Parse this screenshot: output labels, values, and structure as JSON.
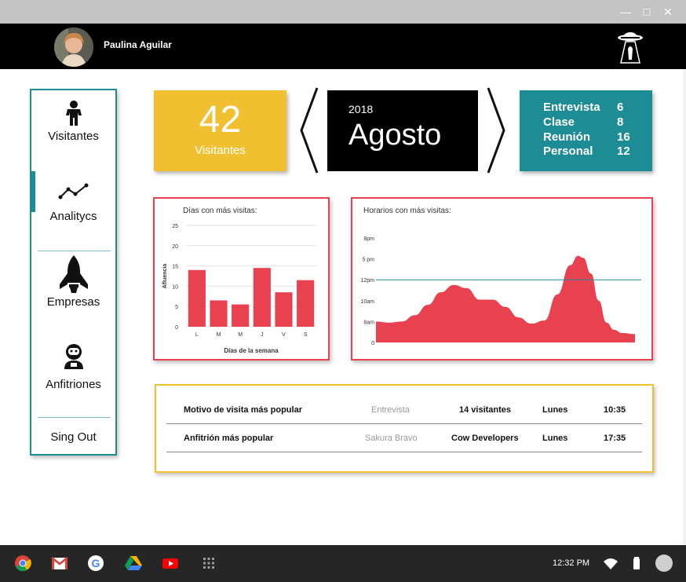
{
  "header": {
    "user_name": "Paulina Aguilar"
  },
  "sidebar": {
    "items": [
      {
        "label": "Visitantes",
        "icon": "person-icon"
      },
      {
        "label": "Analitycs",
        "icon": "line-chart-icon"
      },
      {
        "label": "Empresas",
        "icon": "rocket-icon"
      },
      {
        "label": "Anfitriones",
        "icon": "astronaut-icon"
      }
    ],
    "signout": "Sing Out"
  },
  "stats": {
    "visitors_count": "42",
    "visitors_label": "Visitantes",
    "year": "2018",
    "month": "Agosto",
    "breakdown": [
      {
        "label": "Entrevista",
        "value": "6"
      },
      {
        "label": "Clase",
        "value": "8"
      },
      {
        "label": "Reunión",
        "value": "16"
      },
      {
        "label": "Personal",
        "value": "12"
      }
    ]
  },
  "chart_data": [
    {
      "type": "bar",
      "title": "Días con más visitas:",
      "xlabel": "Días de la semana",
      "ylabel": "Afluencia",
      "categories": [
        "L",
        "M",
        "M",
        "J",
        "V",
        "S"
      ],
      "values": [
        14,
        6.5,
        5.5,
        14.5,
        8.5,
        11.5
      ],
      "yticks": [
        "0",
        "5",
        "10",
        "15",
        "20",
        "25"
      ],
      "ylim": [
        0,
        25
      ],
      "color": "#e8414f",
      "grid": true
    },
    {
      "type": "area",
      "title": "Horarios con más visitas:",
      "yticks": [
        "0",
        "8am",
        "10am",
        "12pm",
        "5 pm",
        "8pm"
      ],
      "ylim": [
        0,
        5
      ],
      "x": [
        0,
        0.05,
        0.1,
        0.15,
        0.2,
        0.25,
        0.3,
        0.35,
        0.4,
        0.45,
        0.5,
        0.55,
        0.6,
        0.65,
        0.7,
        0.75,
        0.78,
        0.8,
        0.83,
        0.86,
        0.89,
        0.92,
        0.95,
        1.0
      ],
      "values": [
        1.0,
        0.95,
        1.0,
        1.3,
        1.8,
        2.4,
        2.75,
        2.6,
        2.05,
        2.05,
        1.7,
        1.2,
        0.9,
        1.05,
        2.3,
        3.7,
        4.15,
        4.05,
        3.3,
        2.0,
        0.95,
        0.6,
        0.45,
        0.4
      ],
      "reference_line": 3,
      "color": "#e8414f",
      "line_color": "#1e8c95"
    }
  ],
  "popular": {
    "rows": [
      {
        "label": "Motivo de visita  más popular",
        "value": "Entrevista",
        "count": "14 visitantes",
        "day": "Lunes",
        "time": "10:35"
      },
      {
        "label": "Anfitrión  más popular",
        "value": "Sakura Bravo",
        "count": "Cow Developers",
        "day": "Lunes",
        "time": "17:35"
      }
    ]
  },
  "shelf": {
    "time": "12:32 PM"
  },
  "colors": {
    "accent_teal": "#1e8c95",
    "accent_yellow": "#f0c030",
    "accent_red": "#e8414f"
  }
}
